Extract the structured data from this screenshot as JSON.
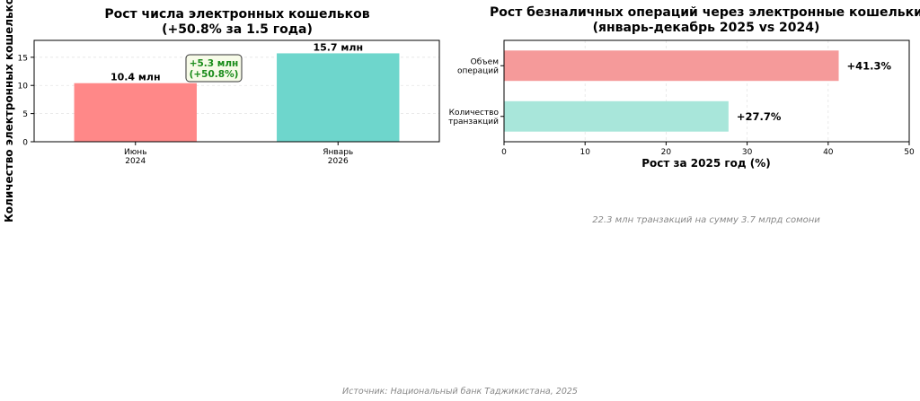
{
  "source_note": "Источник: Национальный банк Таджикистана, 2025",
  "colors": {
    "wallets_jun": "#ff8888",
    "wallets_jan": "#6ed6cc",
    "bar_volume": "#f59a9a",
    "bar_count": "#a8e6da",
    "annotation_text": "#1a8c1a",
    "annotation_fill": "#f7fbe8",
    "note_gray": "#888888"
  },
  "chart_data": [
    {
      "type": "bar",
      "title": "Рост числа электронных кошельков",
      "subtitle": "(+50.8% за 1.5 года)",
      "ylabel": "Количество электронных кошельков",
      "xlabel": "",
      "categories": [
        "Июнь\n2024",
        "Январь\n2026"
      ],
      "values": [
        10.4,
        15.7
      ],
      "data_labels": [
        "10.4 млн",
        "15.7 млн"
      ],
      "ylim": [
        0,
        18
      ],
      "yticks": [
        0,
        5,
        10,
        15
      ],
      "grid": true,
      "annotation": {
        "line1": "+5.3 млн",
        "line2": "(+50.8%)"
      }
    },
    {
      "type": "bar",
      "orientation": "horizontal",
      "title": "Рост безналичных операций через электронные кошельки",
      "subtitle": "(январь-декабрь 2025 vs 2024)",
      "xlabel": "Рост за 2025 год (%)",
      "ylabel": "",
      "categories": [
        "Объем\nопераций",
        "Количество\nтранзакций"
      ],
      "values": [
        41.3,
        27.7
      ],
      "data_labels": [
        "+41.3%",
        "+27.7%"
      ],
      "xlim": [
        0,
        50
      ],
      "xticks": [
        0,
        10,
        20,
        30,
        40,
        50
      ],
      "grid": true,
      "note": "22.3 млн транзакций на сумму 3.7 млрд сомони"
    }
  ]
}
